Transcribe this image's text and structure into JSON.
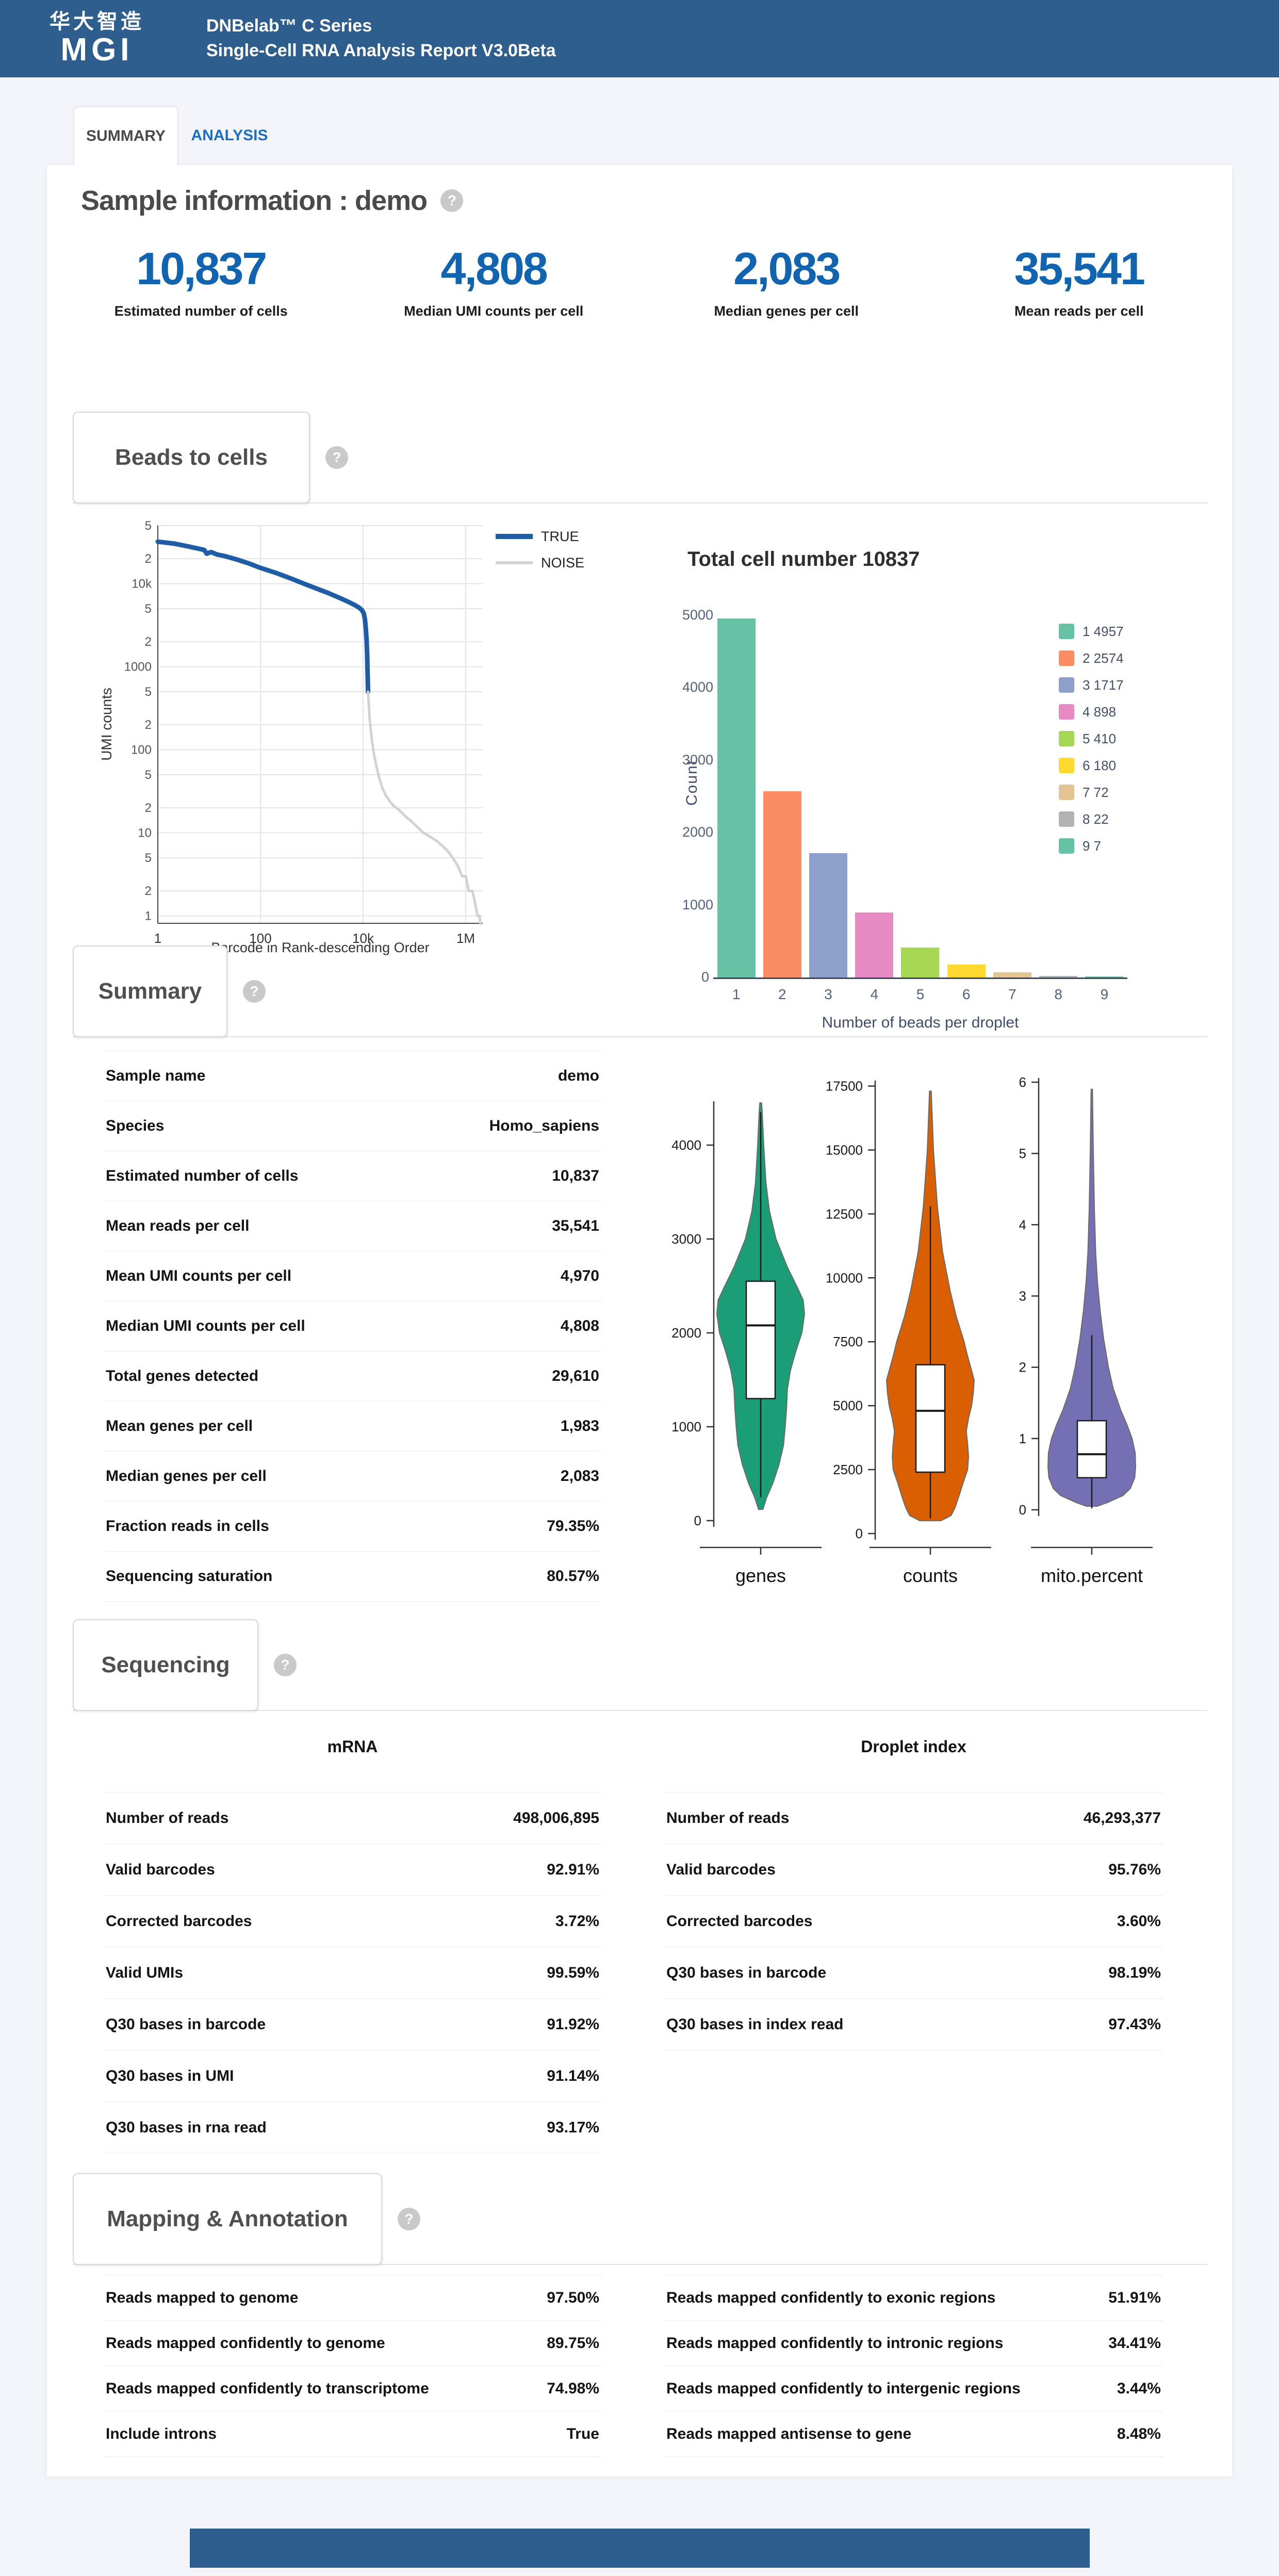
{
  "header": {
    "logo_cn": "华大智造",
    "logo_en": "MGI",
    "product_line": "DNBelab™ C Series",
    "report_line": "Single-Cell RNA Analysis Report V3.0Beta"
  },
  "tabs": [
    {
      "label": "SUMMARY",
      "active": true
    },
    {
      "label": "ANALYSIS",
      "active": false
    }
  ],
  "sample": {
    "title": "Sample information : demo"
  },
  "metrics": [
    {
      "value": "10,837",
      "label": "Estimated number of cells"
    },
    {
      "value": "4,808",
      "label": "Median UMI counts per cell"
    },
    {
      "value": "2,083",
      "label": "Median genes per cell"
    },
    {
      "value": "35,541",
      "label": "Mean reads per cell"
    }
  ],
  "sections": {
    "beads": "Beads to cells",
    "summary": "Summary",
    "sequencing": "Sequencing",
    "mapping": "Mapping & Annotation"
  },
  "summary_table": {
    "rows": [
      [
        "Sample name",
        "demo"
      ],
      [
        "Species",
        "Homo_sapiens"
      ],
      [
        "Estimated number of cells",
        "10,837"
      ],
      [
        "Mean reads per cell",
        "35,541"
      ],
      [
        "Mean UMI counts per cell",
        "4,970"
      ],
      [
        "Median UMI counts per cell",
        "4,808"
      ],
      [
        "Total genes detected",
        "29,610"
      ],
      [
        "Mean genes per cell",
        "1,983"
      ],
      [
        "Median genes per cell",
        "2,083"
      ],
      [
        "Fraction reads in cells",
        "79.35%"
      ],
      [
        "Sequencing saturation",
        "80.57%"
      ]
    ]
  },
  "sequencing": {
    "left_title": "mRNA",
    "left_rows": [
      [
        "Number of reads",
        "498,006,895"
      ],
      [
        "Valid barcodes",
        "92.91%"
      ],
      [
        "Corrected barcodes",
        "3.72%"
      ],
      [
        "Valid UMIs",
        "99.59%"
      ],
      [
        "Q30 bases in barcode",
        "91.92%"
      ],
      [
        "Q30 bases in UMI",
        "91.14%"
      ],
      [
        "Q30 bases in rna read",
        "93.17%"
      ]
    ],
    "right_title": "Droplet index",
    "right_rows": [
      [
        "Number of reads",
        "46,293,377"
      ],
      [
        "Valid barcodes",
        "95.76%"
      ],
      [
        "Corrected barcodes",
        "3.60%"
      ],
      [
        "Q30 bases in barcode",
        "98.19%"
      ],
      [
        "Q30 bases in index read",
        "97.43%"
      ]
    ]
  },
  "mapping": {
    "left_rows": [
      [
        "Reads mapped to genome",
        "97.50%"
      ],
      [
        "Reads mapped confidently to genome",
        "89.75%"
      ],
      [
        "Reads mapped confidently to transcriptome",
        "74.98%"
      ],
      [
        "Include introns",
        "True"
      ]
    ],
    "right_rows": [
      [
        "Reads mapped confidently to exonic regions",
        "51.91%"
      ],
      [
        "Reads mapped confidently to intronic regions",
        "34.41%"
      ],
      [
        "Reads mapped confidently to intergenic regions",
        "3.44%"
      ],
      [
        "Reads mapped antisense to gene",
        "8.48%"
      ]
    ]
  },
  "chart_data": [
    {
      "type": "line",
      "id": "barcode_rank_plot",
      "title": "",
      "xlabel": "Barcode in Rank-descending Order",
      "ylabel": "UMI counts",
      "xscale": "log",
      "yscale": "log",
      "x_ticks": [
        [
          "1",
          1
        ],
        [
          "100",
          100
        ],
        [
          "10k",
          10000
        ],
        [
          "1M",
          1000000
        ]
      ],
      "y_ticks": [
        [
          "5",
          50000
        ],
        [
          "2",
          20000
        ],
        [
          "10k",
          10000
        ],
        [
          "5",
          5000
        ],
        [
          "2",
          2000
        ],
        [
          "1000",
          1000
        ],
        [
          "5",
          500
        ],
        [
          "2",
          200
        ],
        [
          "100",
          100
        ],
        [
          "5",
          50
        ],
        [
          "2",
          20
        ],
        [
          "10",
          10
        ],
        [
          "5",
          5
        ],
        [
          "2",
          2
        ],
        [
          "1",
          1
        ]
      ],
      "legend_position": "top-right",
      "grid": true,
      "series": [
        {
          "name": "TRUE",
          "color": "#1f5ca6",
          "points": [
            [
              1,
              32000
            ],
            [
              2,
              30500
            ],
            [
              4,
              28000
            ],
            [
              6,
              26500
            ],
            [
              8,
              25500
            ],
            [
              9,
              23000
            ],
            [
              11,
              24000
            ],
            [
              14,
              22500
            ],
            [
              20,
              21500
            ],
            [
              35,
              19500
            ],
            [
              60,
              17500
            ],
            [
              100,
              15500
            ],
            [
              200,
              13500
            ],
            [
              400,
              11500
            ],
            [
              700,
              10000
            ],
            [
              1200,
              8800
            ],
            [
              2000,
              7800
            ],
            [
              3200,
              6900
            ],
            [
              5000,
              6100
            ],
            [
              7000,
              5500
            ],
            [
              8500,
              5100
            ],
            [
              9500,
              4800
            ],
            [
              10300,
              4400
            ],
            [
              10900,
              3700
            ],
            [
              11300,
              2900
            ],
            [
              11700,
              2100
            ],
            [
              12000,
              1400
            ],
            [
              12200,
              900
            ],
            [
              12400,
              620
            ],
            [
              12500,
              500
            ]
          ]
        },
        {
          "name": "NOISE",
          "color": "#d0d3d6",
          "points": [
            [
              12500,
              500
            ],
            [
              12800,
              380
            ],
            [
              13300,
              260
            ],
            [
              14000,
              180
            ],
            [
              15000,
              125
            ],
            [
              16500,
              85
            ],
            [
              18500,
              60
            ],
            [
              21000,
              44
            ],
            [
              24000,
              34
            ],
            [
              28000,
              28
            ],
            [
              33000,
              24
            ],
            [
              40000,
              21
            ],
            [
              50000,
              19
            ],
            [
              65000,
              16
            ],
            [
              85000,
              14
            ],
            [
              110000,
              12
            ],
            [
              150000,
              10
            ],
            [
              200000,
              9
            ],
            [
              270000,
              8
            ],
            [
              350000,
              7
            ],
            [
              450000,
              6
            ],
            [
              560000,
              5
            ],
            [
              700000,
              4
            ],
            [
              850000,
              3
            ],
            [
              1000000,
              3
            ],
            [
              1150000,
              2
            ],
            [
              1350000,
              2
            ],
            [
              1500000,
              1.5
            ],
            [
              1700000,
              1
            ],
            [
              1850000,
              1
            ],
            [
              1950000,
              0.8
            ]
          ]
        }
      ]
    },
    {
      "type": "bar",
      "id": "beads_per_droplet",
      "title": "Total cell number 10837",
      "xlabel": "Number of beads per droplet",
      "ylabel": "Count",
      "categories": [
        1,
        2,
        3,
        4,
        5,
        6,
        7,
        8,
        9
      ],
      "values": [
        4957,
        2574,
        1717,
        898,
        410,
        180,
        72,
        22,
        7
      ],
      "colors": [
        "#66c2a5",
        "#fc8d62",
        "#8da0cb",
        "#e78ac3",
        "#a6d854",
        "#ffd92f",
        "#e5c494",
        "#b3b3b3",
        "#66c2a5"
      ],
      "ylim": [
        0,
        5000
      ],
      "y_ticks": [
        0,
        1000,
        2000,
        3000,
        4000,
        5000
      ],
      "legend_position": "right"
    },
    {
      "type": "violin",
      "id": "qc_violins",
      "panels": [
        {
          "label": "genes",
          "color": "#1b9e77",
          "ticks": [
            0,
            1000,
            2000,
            3000,
            4000
          ],
          "box": {
            "lo": 250,
            "q1": 1300,
            "med": 2080,
            "q3": 2550,
            "hi": 4350
          },
          "profile": [
            [
              120,
              0.05
            ],
            [
              250,
              0.14
            ],
            [
              400,
              0.28
            ],
            [
              600,
              0.42
            ],
            [
              800,
              0.52
            ],
            [
              1000,
              0.56
            ],
            [
              1200,
              0.59
            ],
            [
              1400,
              0.61
            ],
            [
              1600,
              0.68
            ],
            [
              1800,
              0.8
            ],
            [
              2000,
              0.94
            ],
            [
              2200,
              1.0
            ],
            [
              2350,
              0.97
            ],
            [
              2500,
              0.82
            ],
            [
              2700,
              0.61
            ],
            [
              3000,
              0.35
            ],
            [
              3300,
              0.2
            ],
            [
              3600,
              0.12
            ],
            [
              4000,
              0.07
            ],
            [
              4350,
              0.035
            ],
            [
              4450,
              0.02
            ]
          ]
        },
        {
          "label": "counts",
          "color": "#d95f02",
          "ticks": [
            0,
            2500,
            5000,
            7500,
            10000,
            12500,
            15000,
            17500
          ],
          "box": {
            "lo": 600,
            "q1": 2400,
            "med": 4800,
            "q3": 6600,
            "hi": 12800
          },
          "profile": [
            [
              500,
              0.24
            ],
            [
              700,
              0.47
            ],
            [
              1000,
              0.56
            ],
            [
              1500,
              0.66
            ],
            [
              2000,
              0.75
            ],
            [
              2500,
              0.85
            ],
            [
              3000,
              0.87
            ],
            [
              3500,
              0.85
            ],
            [
              4000,
              0.82
            ],
            [
              4500,
              0.87
            ],
            [
              5000,
              0.94
            ],
            [
              5500,
              0.98
            ],
            [
              6000,
              1.0
            ],
            [
              6500,
              0.92
            ],
            [
              7000,
              0.84
            ],
            [
              7500,
              0.77
            ],
            [
              8500,
              0.59
            ],
            [
              9500,
              0.45
            ],
            [
              11000,
              0.28
            ],
            [
              12800,
              0.16
            ],
            [
              15000,
              0.07
            ],
            [
              17300,
              0.02
            ]
          ]
        },
        {
          "label": "mito.percent",
          "color": "#7570b3",
          "ticks": [
            0,
            1,
            2,
            3,
            4,
            5,
            6
          ],
          "box": {
            "lo": 0.02,
            "q1": 0.45,
            "med": 0.78,
            "q3": 1.25,
            "hi": 2.45
          },
          "profile": [
            [
              0.05,
              0.12
            ],
            [
              0.1,
              0.35
            ],
            [
              0.2,
              0.71
            ],
            [
              0.3,
              0.88
            ],
            [
              0.45,
              0.98
            ],
            [
              0.6,
              1.0
            ],
            [
              0.8,
              0.99
            ],
            [
              1.0,
              0.92
            ],
            [
              1.2,
              0.8
            ],
            [
              1.4,
              0.66
            ],
            [
              1.7,
              0.49
            ],
            [
              2.0,
              0.38
            ],
            [
              2.4,
              0.27
            ],
            [
              2.8,
              0.19
            ],
            [
              3.2,
              0.13
            ],
            [
              3.6,
              0.09
            ],
            [
              4.2,
              0.06
            ],
            [
              5.0,
              0.035
            ],
            [
              5.9,
              0.015
            ]
          ]
        }
      ]
    }
  ]
}
